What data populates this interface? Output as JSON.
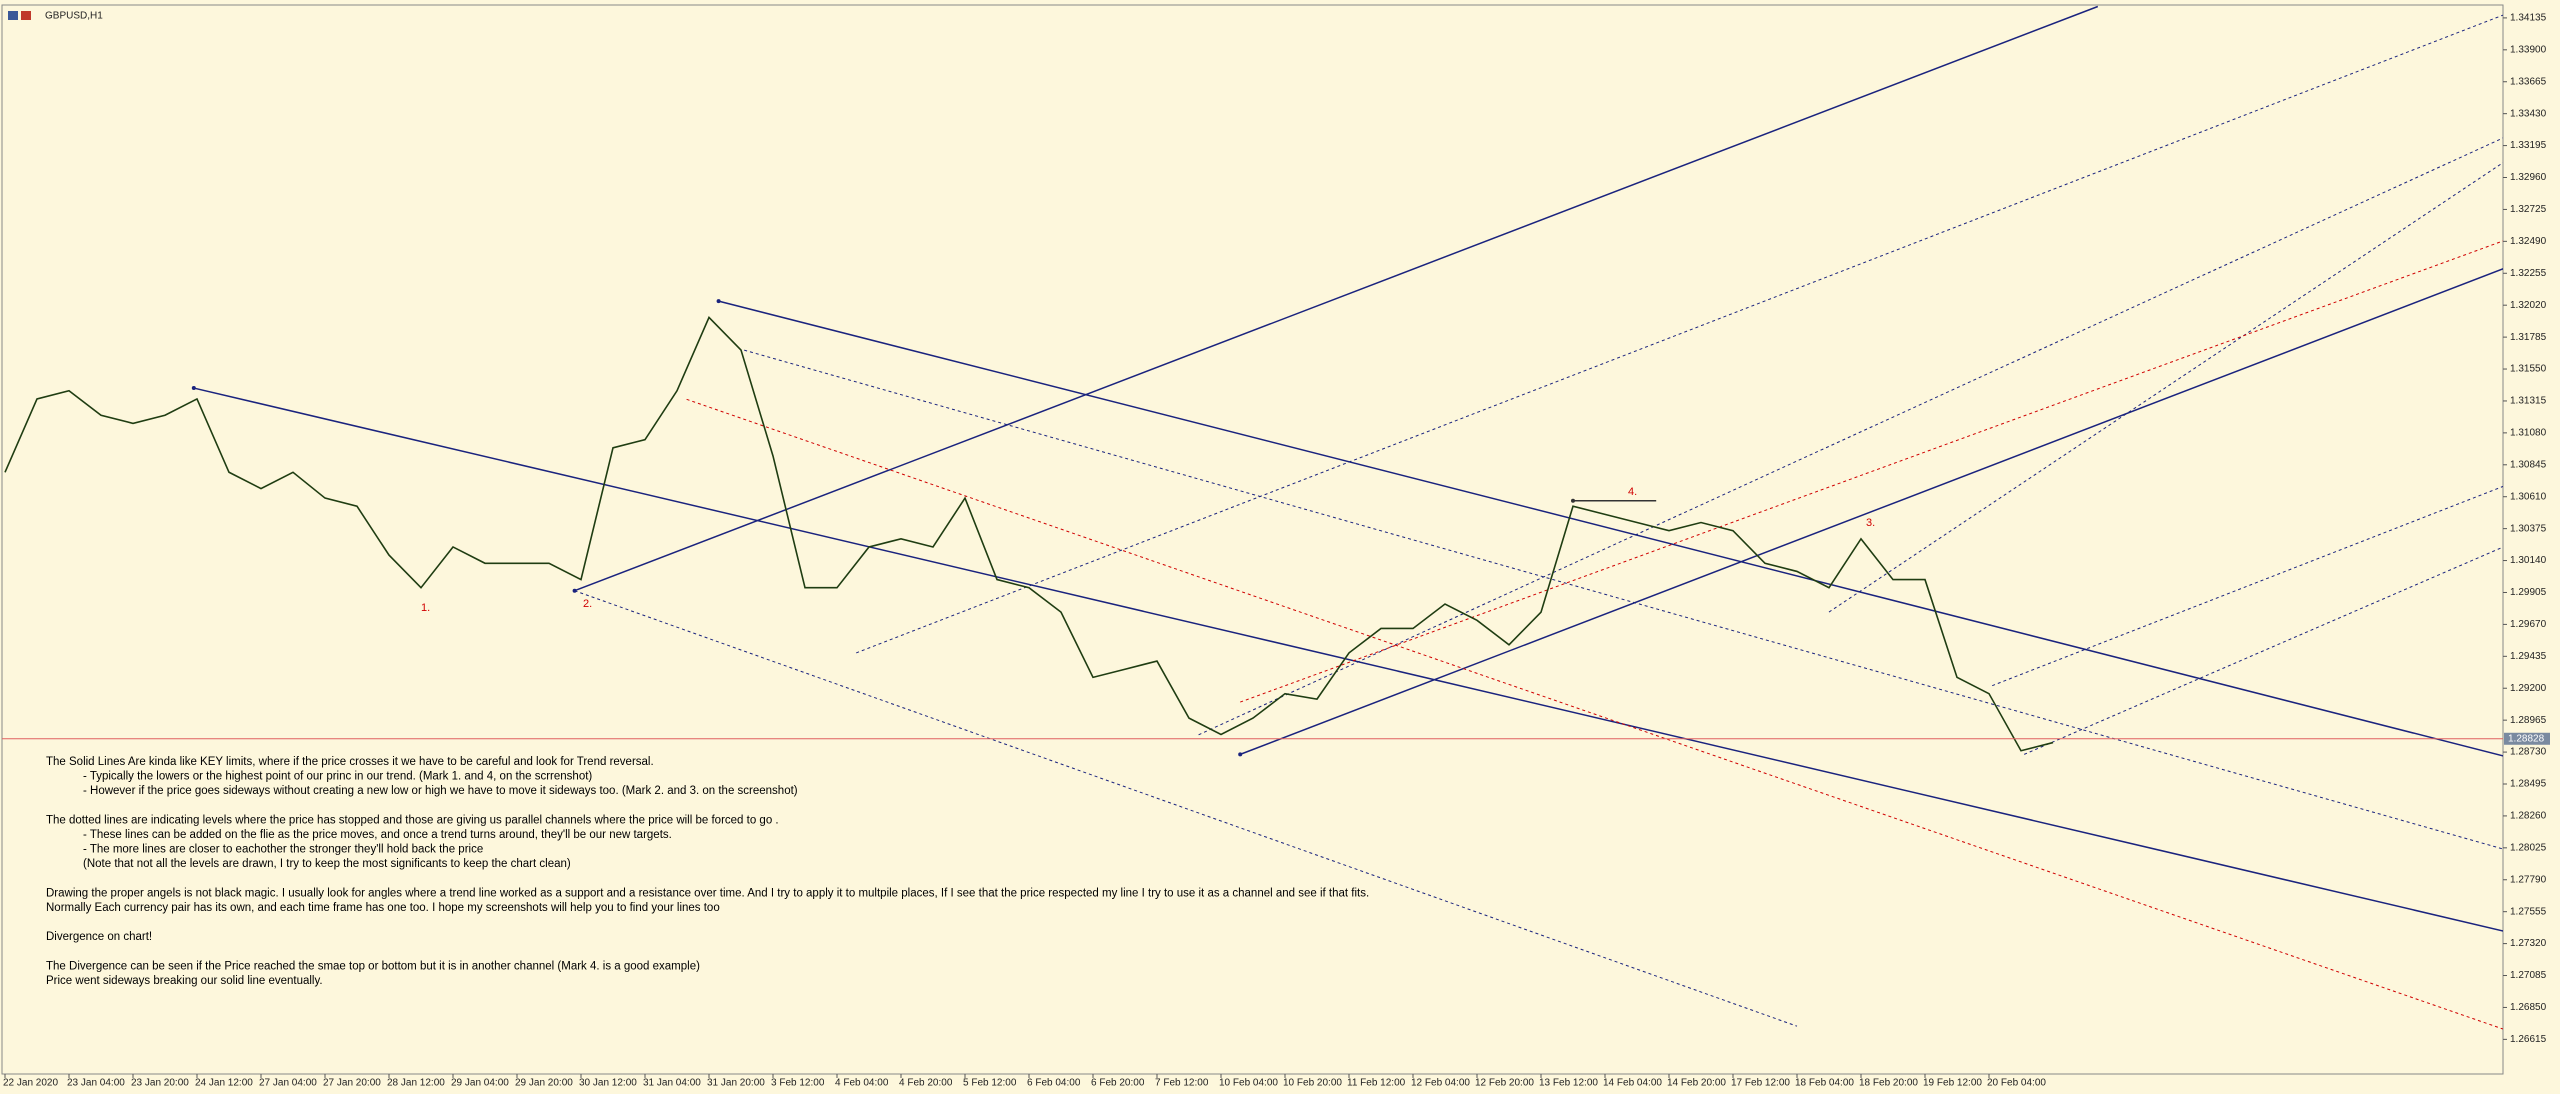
{
  "chart_data": {
    "type": "line",
    "symbol": "GBPUSD,H1",
    "color": "#1f3d12",
    "categories": [
      "22 Jan 2020",
      null,
      "23 Jan 04:00",
      null,
      "23 Jan 20:00",
      null,
      "24 Jan 12:00",
      null,
      "27 Jan 04:00",
      null,
      "27 Jan 20:00",
      null,
      "28 Jan 12:00",
      null,
      "29 Jan 04:00",
      null,
      "29 Jan 20:00",
      null,
      "30 Jan 12:00",
      null,
      "31 Jan 04:00",
      null,
      "31 Jan 20:00",
      null,
      "3 Feb 12:00",
      null,
      "4 Feb 04:00",
      null,
      "4 Feb 20:00",
      null,
      "5 Feb 12:00",
      null,
      "6 Feb 04:00",
      null,
      "6 Feb 20:00",
      null,
      "7 Feb 12:00",
      null,
      "10 Feb 04:00",
      null,
      "10 Feb 20:00",
      null,
      "11 Feb 12:00",
      null,
      "12 Feb 04:00",
      null,
      "12 Feb 20:00",
      null,
      "13 Feb 12:00",
      null,
      "14 Feb 04:00",
      null,
      "14 Feb 20:00",
      null,
      "17 Feb 12:00",
      null,
      "18 Feb 04:00",
      null,
      "18 Feb 20:00",
      null,
      "19 Feb 12:00",
      null,
      "20 Feb 04:00",
      null,
      null,
      null,
      null,
      null,
      null,
      null,
      null,
      null,
      null,
      null,
      null,
      null,
      null,
      null,
      null
    ],
    "values": [
      1.3079,
      1.3133,
      1.3139,
      1.3121,
      1.3115,
      1.3121,
      1.3133,
      1.3079,
      1.3067,
      1.3079,
      1.306,
      1.3054,
      1.3018,
      1.2994,
      1.3024,
      1.3012,
      1.3012,
      1.3012,
      1.3,
      1.3097,
      1.3103,
      1.3139,
      1.3193,
      1.3169,
      1.3091,
      1.2994,
      1.2994,
      1.3024,
      1.303,
      1.3024,
      1.306,
      1.3,
      1.2994,
      1.2976,
      1.2928,
      1.2934,
      1.294,
      1.2898,
      1.2886,
      1.2898,
      1.2916,
      1.2912,
      1.2946,
      1.2964,
      1.2964,
      1.2982,
      1.297,
      1.2952,
      1.2976,
      1.3054,
      1.3048,
      1.3042,
      1.3036,
      1.3042,
      1.3036,
      1.3012,
      1.3006,
      1.2994,
      1.303,
      1.3,
      1.3,
      1.2928,
      1.2916,
      1.2874,
      1.288,
      null,
      null,
      null,
      null,
      null,
      null,
      null,
      null,
      null,
      null,
      null,
      null,
      null,
      null
    ],
    "ylim": [
      1.2636,
      1.3423
    ],
    "yticks": [
      1.34135,
      {
        "value": 1.339,
        "label": "1.33900"
      },
      1.33665,
      {
        "value": 1.3343,
        "label": "1.33430"
      },
      1.33195,
      {
        "value": 1.3296,
        "label": "1.32960"
      },
      1.32725,
      {
        "value": 1.3249,
        "label": "1.32490"
      },
      1.32255,
      {
        "value": 1.3202,
        "label": "1.32020"
      },
      1.31785,
      {
        "value": 1.3155,
        "label": "1.31550"
      },
      1.31315,
      {
        "value": 1.3108,
        "label": "1.31080"
      },
      1.30845,
      {
        "value": 1.3061,
        "label": "1.30610"
      },
      1.30375,
      {
        "value": 1.3014,
        "label": "1.30140"
      },
      1.29905,
      {
        "value": 1.2967,
        "label": "1.29670"
      },
      1.29435,
      {
        "value": 1.292,
        "label": "1.29200"
      },
      1.28965,
      {
        "value": 1.2873,
        "label": "1.28730"
      },
      1.28495,
      {
        "value": 1.2826,
        "label": "1.28260"
      },
      1.28025,
      {
        "value": 1.2779,
        "label": "1.27790"
      },
      1.27555,
      {
        "value": 1.2732,
        "label": "1.27320"
      },
      1.27085,
      {
        "value": 1.2685,
        "label": "1.26850"
      },
      1.26615
    ],
    "current_price": 1.28828,
    "current_price_color": "#e06060",
    "trendlines": [
      {
        "x": [
          5.9,
          78.1
        ],
        "y": [
          1.3141,
          1.27411
        ],
        "style": "solid",
        "color": "#1a237e"
      },
      {
        "x": [
          22.3,
          78.1
        ],
        "y": [
          1.3205,
          1.287
        ],
        "style": "solid",
        "color": "#1a237e"
      },
      {
        "x": [
          17.8,
          65.4
        ],
        "y": [
          1.29918,
          1.34219
        ],
        "style": "solid",
        "color": "#1a237e"
      },
      {
        "x": [
          38.6,
          78.1
        ],
        "y": [
          1.28713,
          1.32291
        ],
        "style": "solid",
        "color": "#1a237e"
      },
      {
        "x": [
          49,
          51.6
        ],
        "y": [
          1.3058,
          1.3058
        ],
        "style": "solid",
        "color": "#333333"
      },
      {
        "x": [
          17.8,
          56
        ],
        "y": [
          1.29918,
          1.26712
        ],
        "style": "dotted",
        "color": "#1a237e"
      },
      {
        "x": [
          23.1,
          78.1
        ],
        "y": [
          1.31689,
          1.28014
        ],
        "style": "dotted",
        "color": "#1a237e"
      },
      {
        "x": [
          26.6,
          78.1
        ],
        "y": [
          1.2946,
          1.34159
        ],
        "style": "dotted",
        "color": "#1a237e"
      },
      {
        "x": [
          37.3,
          78.1
        ],
        "y": [
          1.28857,
          1.33255
        ],
        "style": "dotted",
        "color": "#1a237e"
      },
      {
        "x": [
          57,
          78.1
        ],
        "y": [
          1.29761,
          1.33075
        ],
        "style": "dotted",
        "color": "#1a237e"
      },
      {
        "x": [
          63.1,
          78.1
        ],
        "y": [
          1.28713,
          1.30243
        ],
        "style": "dotted",
        "color": "#1a237e"
      },
      {
        "x": [
          62.1,
          78.1
        ],
        "y": [
          1.29219,
          1.30689
        ],
        "style": "dotted",
        "color": "#1a237e"
      },
      {
        "x": [
          21.3,
          78.1
        ],
        "y": [
          1.31327,
          1.26688
        ],
        "style": "dotted",
        "color": "#d00000"
      },
      {
        "x": [
          38.6,
          78.1
        ],
        "y": [
          1.29098,
          1.32496
        ],
        "style": "dotted",
        "color": "#d00000"
      }
    ],
    "annotations": [
      "1.",
      "2.",
      "3.",
      "4."
    ],
    "notes": [
      {
        "main": [
          "The Solid Lines Are kinda like KEY limits, where if the price crosses it we have to be careful and look for Trend reversal."
        ],
        "sub": [
          "- Typically the lowers or the highest point of our princ in our trend. (Mark 1. and 4, on the scrrenshot)",
          "- However if the price goes sideways without creating a new low or high we have to move it  sideways too. (Mark 2. and 3. on the screenshot)"
        ]
      },
      {
        "main": [
          "The dotted lines are indicating levels where the price has stopped and those are giving us parallel channels where the price will be forced to go ."
        ],
        "sub": [
          "- These lines can be added on the flie as the price moves, and once a trend turns around, they'll be our new targets.",
          "- The more lines are closer to eachother the stronger they'll hold back the price",
          "(Note that not all the levels are drawn, I try to keep the most significants to keep the chart clean)"
        ]
      },
      {
        "main": [
          "Drawing the proper angels is not black magic. I usually look for angles where a trend line worked as a support and a resistance over time. And I try to apply it to multpile places,  If I see that the price respected my line I try to use it as a channel and see if that fits.",
          "Normally Each currency pair has its own, and each time frame has one too. I hope my screenshots will help you to find your lines too"
        ],
        "sub": []
      },
      {
        "main": [
          "Divergence on chart!"
        ],
        "sub": []
      },
      {
        "main": [
          "The Divergence can be seen if the Price reached the smae top or bottom but it is in another channel  (Mark 4. is a good example)",
          "Price went sideways breaking our solid line eventually."
        ],
        "sub": []
      }
    ]
  }
}
